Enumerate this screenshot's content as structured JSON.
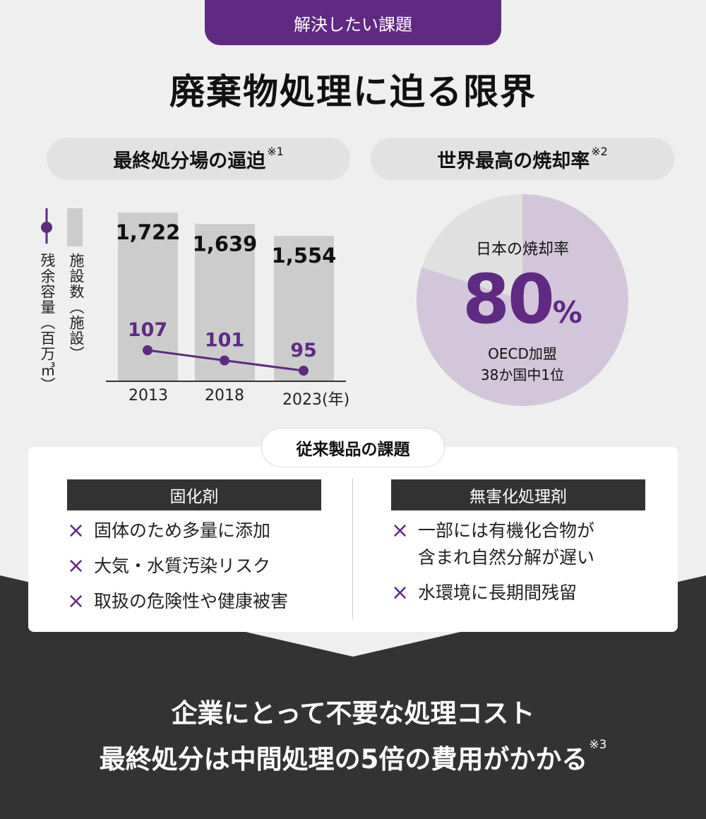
{
  "tag": "解決したい課題",
  "title": "廃棄物処理に迫る限界",
  "left_pill": {
    "label": "最終処分場の逼迫",
    "note": "※1"
  },
  "right_pill": {
    "label": "世界最高の焼却率",
    "note": "※2"
  },
  "colors": {
    "purple": "#5f2a82",
    "bar": "#cccccc",
    "pie_main": "#d3c6da",
    "pie_rest": "#e0e0e0",
    "dark": "#333333"
  },
  "chart_data": [
    {
      "type": "bar+line",
      "categories": [
        "2013",
        "2018",
        "2023"
      ],
      "x_unit": "(年)",
      "series": [
        {
          "name": "施設数（施設）",
          "type": "bar",
          "values": [
            1722,
            1639,
            1554
          ],
          "labels": [
            "1,722",
            "1,639",
            "1,554"
          ]
        },
        {
          "name": "残余容量（百万㎥）",
          "type": "line",
          "values": [
            107,
            101,
            95
          ],
          "labels": [
            "107",
            "101",
            "95"
          ]
        }
      ]
    },
    {
      "type": "pie",
      "values": [
        80,
        20
      ],
      "title": "日本の焼却率",
      "value_label": "80",
      "unit": "%",
      "subtitle": [
        "OECD加盟",
        "38か国中1位"
      ]
    }
  ],
  "issues": {
    "label": "従来製品の課題",
    "columns": [
      {
        "title": "固化剤",
        "items": [
          "固体のため多量に添加",
          "大気・水質汚染リスク",
          "取扱の危険性や健康被害"
        ]
      },
      {
        "title": "無害化処理剤",
        "items": [
          "一部には有機化合物が\n含まれ自然分解が遅い",
          "水環境に長期間残留"
        ]
      }
    ],
    "mark": "×"
  },
  "bottom": {
    "line1": "企業にとって不要な処理コスト",
    "line2": "最終処分は中間処理の5倍の費用がかかる",
    "note": "※3"
  }
}
